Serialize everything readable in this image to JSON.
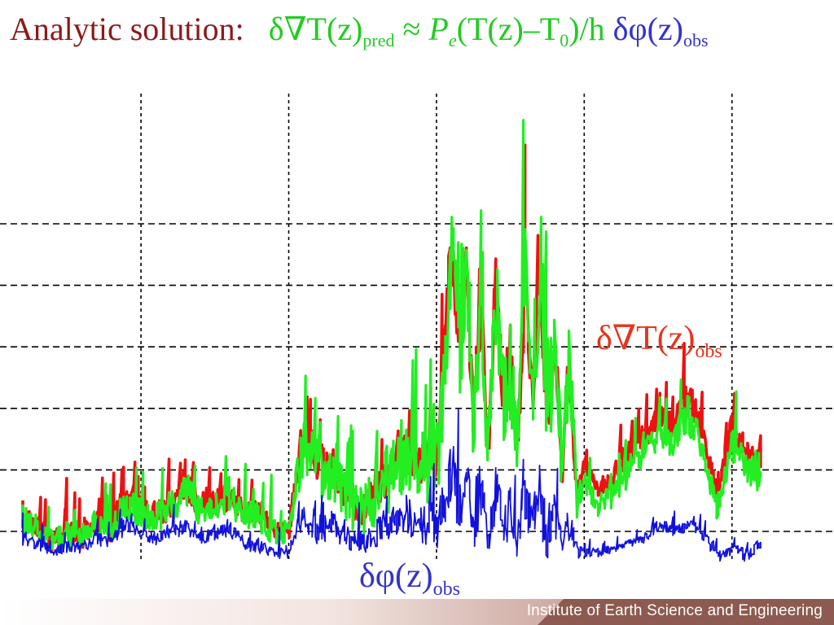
{
  "title": {
    "label": "Analytic solution:",
    "pred_lhs_main": "δ∇T(z)",
    "pred_lhs_sub": "pred",
    "approx": "≈",
    "pe_main": "P",
    "pe_sub": "e",
    "expr_open": "(T(z)–T",
    "expr_sub": "0",
    "expr_close": ")/h",
    "phi_main": "δφ(z)",
    "phi_sub": "obs"
  },
  "annotations": {
    "red_main": "δ∇T(z)",
    "red_sub": "obs",
    "blue_main": "δφ(z)",
    "blue_sub": "obs"
  },
  "footer": {
    "institution": "Institute of Earth Science and Engineering"
  },
  "colors": {
    "red": "#ee1111",
    "green": "#22ee22",
    "blue": "#1111dd",
    "title_label": "#8b1a1a",
    "grid": "#000000"
  },
  "chart_data": {
    "type": "line",
    "title": "Analytic solution: δ∇T(z)pred ≈ Pe(T(z)–T0)/h δφ(z)obs",
    "xlabel": "",
    "ylabel": "",
    "xlim": [
      0,
      100
    ],
    "ylim": [
      0,
      100
    ],
    "grid": true,
    "grid_style": "dashed",
    "x_gridlines": [
      16,
      36,
      56,
      76,
      96
    ],
    "y_gridlines": [
      5,
      19,
      33,
      47,
      61,
      75
    ],
    "series": [
      {
        "name": "δ∇T(z)obs",
        "color": "#ee1111",
        "x": [
          0,
          2,
          4,
          6,
          8,
          10,
          12,
          14,
          16,
          18,
          20,
          22,
          24,
          26,
          28,
          30,
          32,
          34,
          36,
          38,
          40,
          42,
          44,
          46,
          48,
          50,
          52,
          54,
          56,
          57,
          58,
          59,
          60,
          61,
          62,
          63,
          64,
          65,
          66,
          67,
          68,
          69,
          70,
          71,
          72,
          73,
          74,
          75,
          76,
          78,
          80,
          82,
          84,
          86,
          88,
          90,
          92,
          94,
          96,
          98,
          100
        ],
        "y": [
          8,
          6,
          2,
          4,
          3,
          7,
          5,
          12,
          9,
          8,
          10,
          15,
          10,
          11,
          12,
          9,
          8,
          5,
          4,
          28,
          20,
          18,
          12,
          9,
          14,
          18,
          22,
          20,
          19,
          40,
          68,
          45,
          62,
          30,
          55,
          22,
          58,
          35,
          42,
          25,
          60,
          32,
          64,
          28,
          46,
          18,
          42,
          12,
          20,
          14,
          17,
          22,
          26,
          30,
          28,
          35,
          27,
          13,
          28,
          22,
          20
        ],
        "dyn": [
          6,
          5,
          4,
          6,
          5,
          6,
          6,
          7,
          6,
          6,
          7,
          7,
          6,
          6,
          7,
          6,
          6,
          5,
          5,
          10,
          10,
          9,
          8,
          8,
          9,
          10,
          11,
          11,
          12,
          14,
          18,
          16,
          18,
          12,
          16,
          10,
          16,
          12,
          14,
          10,
          18,
          12,
          16,
          12,
          14,
          8,
          12,
          6,
          4,
          4,
          5,
          6,
          6,
          6,
          6,
          8,
          6,
          5,
          7,
          6,
          5
        ]
      },
      {
        "name": "δ∇T(z)pred",
        "color": "#22ee22",
        "x": [
          0,
          2,
          4,
          6,
          8,
          10,
          12,
          14,
          16,
          18,
          20,
          22,
          24,
          26,
          28,
          30,
          32,
          34,
          36,
          38,
          40,
          42,
          44,
          46,
          48,
          50,
          52,
          54,
          56,
          57,
          58,
          59,
          60,
          61,
          62,
          63,
          64,
          65,
          66,
          67,
          68,
          69,
          70,
          71,
          72,
          73,
          74,
          75,
          76,
          78,
          80,
          82,
          84,
          86,
          88,
          90,
          92,
          94,
          96,
          98,
          100
        ],
        "y": [
          7,
          5,
          2,
          3,
          3,
          6,
          4,
          11,
          8,
          7,
          9,
          13,
          9,
          10,
          11,
          8,
          7,
          4,
          4,
          24,
          18,
          16,
          11,
          8,
          12,
          16,
          20,
          18,
          17,
          36,
          64,
          42,
          60,
          28,
          54,
          20,
          56,
          33,
          40,
          22,
          58,
          30,
          66,
          26,
          46,
          16,
          40,
          10,
          16,
          10,
          13,
          18,
          22,
          26,
          24,
          31,
          23,
          9,
          24,
          18,
          16
        ],
        "dyn": [
          7,
          6,
          5,
          7,
          6,
          7,
          7,
          8,
          7,
          7,
          8,
          8,
          7,
          7,
          8,
          7,
          7,
          6,
          6,
          14,
          14,
          13,
          12,
          12,
          14,
          15,
          16,
          17,
          18,
          20,
          26,
          22,
          28,
          18,
          24,
          16,
          26,
          20,
          24,
          16,
          30,
          20,
          32,
          18,
          26,
          12,
          22,
          8,
          5,
          5,
          6,
          7,
          7,
          7,
          7,
          10,
          7,
          6,
          8,
          7,
          6
        ]
      },
      {
        "name": "δφ(z)obs",
        "color": "#1111dd",
        "x": [
          0,
          2,
          4,
          6,
          8,
          10,
          12,
          14,
          16,
          18,
          20,
          22,
          24,
          26,
          28,
          30,
          32,
          34,
          36,
          38,
          40,
          42,
          44,
          46,
          48,
          50,
          52,
          54,
          56,
          57,
          58,
          59,
          60,
          61,
          62,
          63,
          64,
          65,
          66,
          67,
          68,
          69,
          70,
          71,
          72,
          73,
          74,
          75,
          76,
          78,
          80,
          82,
          84,
          86,
          88,
          90,
          92,
          94,
          96,
          98,
          100
        ],
        "y": [
          3,
          2,
          0,
          1,
          1,
          3,
          2,
          6,
          4,
          3,
          4,
          6,
          3,
          4,
          5,
          2,
          1,
          0,
          0,
          8,
          4,
          6,
          3,
          1,
          4,
          6,
          8,
          6,
          4,
          10,
          18,
          8,
          16,
          4,
          14,
          2,
          12,
          4,
          8,
          2,
          12,
          4,
          12,
          2,
          8,
          1,
          6,
          0,
          0,
          0,
          1,
          2,
          3,
          6,
          5,
          6,
          4,
          -1,
          1,
          -1,
          2
        ],
        "dyn": [
          3,
          3,
          3,
          3,
          3,
          3,
          3,
          4,
          3,
          3,
          4,
          4,
          3,
          3,
          4,
          3,
          3,
          3,
          3,
          7,
          7,
          7,
          6,
          6,
          7,
          8,
          9,
          10,
          11,
          12,
          16,
          14,
          16,
          10,
          14,
          8,
          14,
          10,
          12,
          8,
          16,
          10,
          16,
          10,
          12,
          6,
          10,
          4,
          2,
          2,
          2,
          2,
          2,
          3,
          3,
          3,
          3,
          3,
          3,
          3,
          3
        ]
      }
    ]
  }
}
